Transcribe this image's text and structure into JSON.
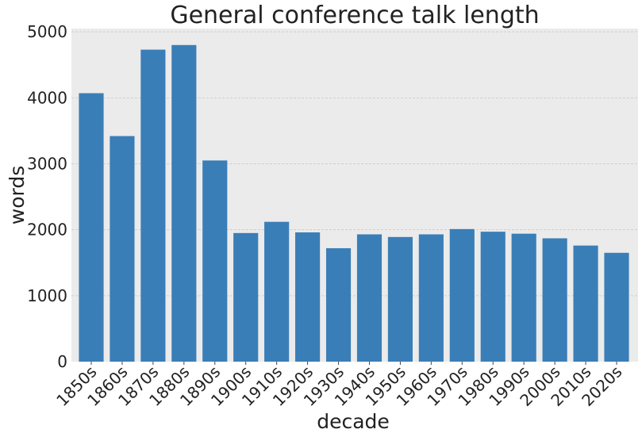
{
  "chart_data": {
    "type": "bar",
    "title": "General conference talk length",
    "xlabel": "decade",
    "ylabel": "words",
    "categories": [
      "1850s",
      "1860s",
      "1870s",
      "1880s",
      "1890s",
      "1900s",
      "1910s",
      "1920s",
      "1930s",
      "1940s",
      "1950s",
      "1960s",
      "1970s",
      "1980s",
      "1990s",
      "2000s",
      "2010s",
      "2020s"
    ],
    "values": [
      4070,
      3420,
      4730,
      4800,
      3050,
      1950,
      2120,
      1960,
      1720,
      1930,
      1890,
      1930,
      2010,
      1970,
      1940,
      1870,
      1760,
      1650
    ],
    "ylim": [
      0,
      5050
    ],
    "yticks": [
      0,
      1000,
      2000,
      3000,
      4000,
      5000
    ],
    "grid": true,
    "legend": "none",
    "colors": {
      "bar": "#3a7eb8",
      "plot_background": "#ebebeb",
      "grid": "#cfcfcf",
      "text": "#222222"
    }
  }
}
